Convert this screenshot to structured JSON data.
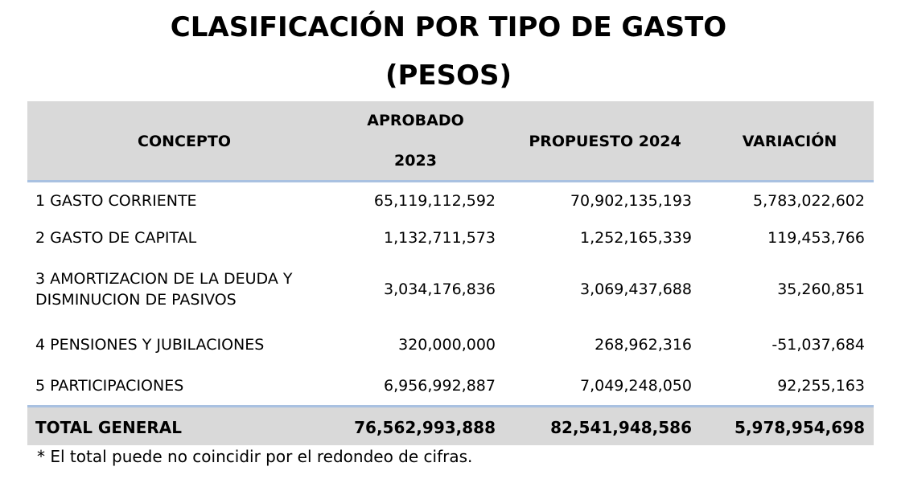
{
  "title": {
    "line1": "CLASIFICACIÓN POR TIPO DE GASTO",
    "line2": "(PESOS)"
  },
  "table": {
    "headers": {
      "concepto": "CONCEPTO",
      "aprobado_line1": "APROBADO",
      "aprobado_line2": "2023",
      "propuesto": "PROPUESTO 2024",
      "variacion": "VARIACIÓN"
    },
    "rows": [
      {
        "concepto_line1": "1 GASTO CORRIENTE",
        "concepto_line2": "",
        "aprobado": "65,119,112,592",
        "propuesto": "70,902,135,193",
        "variacion": "5,783,022,602"
      },
      {
        "concepto_line1": "2 GASTO DE CAPITAL",
        "concepto_line2": "",
        "aprobado": "1,132,711,573",
        "propuesto": "1,252,165,339",
        "variacion": "119,453,766"
      },
      {
        "concepto_line1": "3 AMORTIZACION DE LA DEUDA Y",
        "concepto_line2": "DISMINUCION DE PASIVOS",
        "aprobado": "3,034,176,836",
        "propuesto": "3,069,437,688",
        "variacion": "35,260,851"
      },
      {
        "concepto_line1": "4 PENSIONES Y JUBILACIONES",
        "concepto_line2": "",
        "aprobado": "320,000,000",
        "propuesto": "268,962,316",
        "variacion": "-51,037,684"
      },
      {
        "concepto_line1": "5 PARTICIPACIONES",
        "concepto_line2": "",
        "aprobado": "6,956,992,887",
        "propuesto": "7,049,248,050",
        "variacion": "92,255,163"
      }
    ],
    "total": {
      "label": "TOTAL GENERAL",
      "aprobado": "76,562,993,888",
      "propuesto": "82,541,948,586",
      "variacion": "5,978,954,698"
    }
  },
  "footnote": "* El total puede no coincidir por el redondeo de cifras.",
  "colors": {
    "header_background": "#d9d9d9",
    "rule_accent": "#a9c1e1"
  }
}
